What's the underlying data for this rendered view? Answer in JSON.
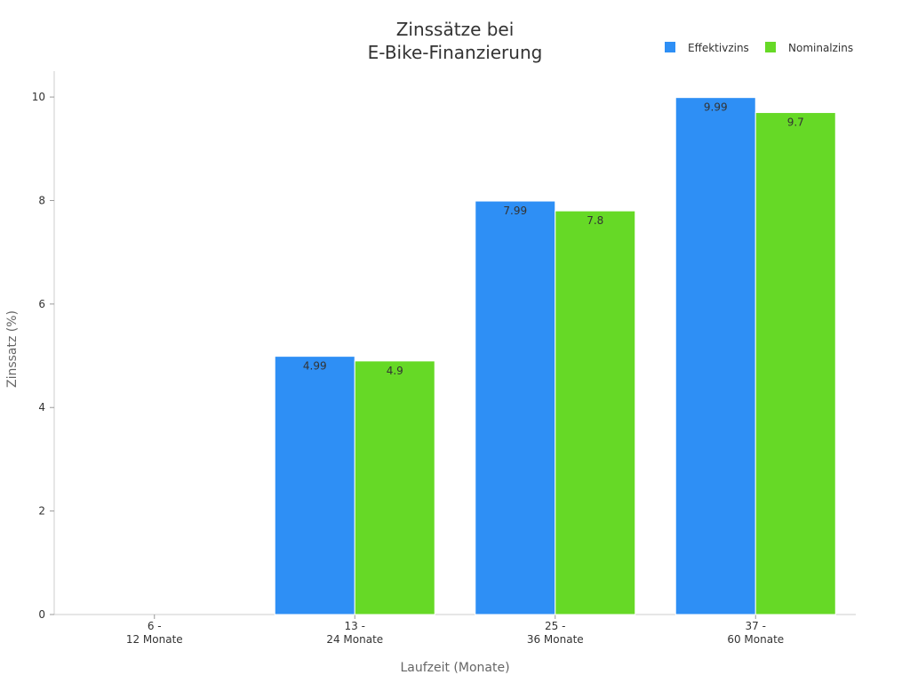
{
  "chart_data": {
    "type": "bar",
    "title": [
      "Zinssätze bei",
      "E-Bike-Finanzierung"
    ],
    "xlabel": "Laufzeit (Monate)",
    "ylabel": "Zinssatz (%)",
    "categories": [
      [
        "6 -",
        "12 Monate"
      ],
      [
        "13 -",
        "24 Monate"
      ],
      [
        "25 -",
        "36 Monate"
      ],
      [
        "37 -",
        "60 Monate"
      ]
    ],
    "series": [
      {
        "name": "Effektivzins",
        "color": "#2E8FF5",
        "values": [
          0,
          4.99,
          7.99,
          9.99
        ]
      },
      {
        "name": "Nominalzins",
        "color": "#66D926",
        "values": [
          0,
          4.9,
          7.8,
          9.7
        ]
      }
    ],
    "ylim": [
      0,
      10.5
    ],
    "yticks": [
      0,
      2,
      4,
      6,
      8,
      10
    ],
    "grid": false,
    "legend_position": "top-right"
  }
}
